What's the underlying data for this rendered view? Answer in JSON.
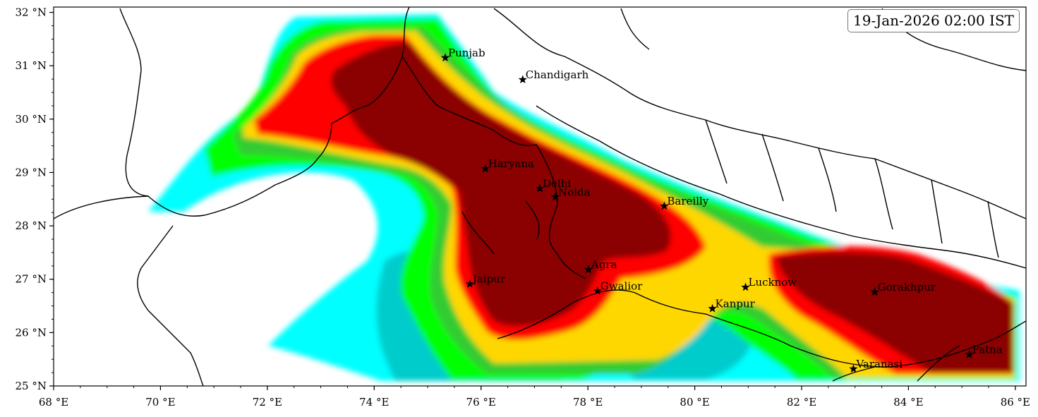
{
  "timestamp": "19-Jan-2026 02:00 IST",
  "map": {
    "lon_range": [
      68,
      86.2
    ],
    "lat_range": [
      25,
      32.1
    ],
    "x_ticks": [
      {
        "lon": 68,
        "label": "68 °E"
      },
      {
        "lon": 70,
        "label": "70 °E"
      },
      {
        "lon": 72,
        "label": "72 °E"
      },
      {
        "lon": 74,
        "label": "74 °E"
      },
      {
        "lon": 76,
        "label": "76 °E"
      },
      {
        "lon": 78,
        "label": "78 °E"
      },
      {
        "lon": 80,
        "label": "80 °E"
      },
      {
        "lon": 82,
        "label": "82 °E"
      },
      {
        "lon": 84,
        "label": "84 °E"
      },
      {
        "lon": 86,
        "label": "86 °E"
      }
    ],
    "y_ticks": [
      {
        "lat": 25,
        "label": "25 °N"
      },
      {
        "lat": 26,
        "label": "26 °N"
      },
      {
        "lat": 27,
        "label": "27 °N"
      },
      {
        "lat": 28,
        "label": "28 °N"
      },
      {
        "lat": 29,
        "label": "29 °N"
      },
      {
        "lat": 30,
        "label": "30 °N"
      },
      {
        "lat": 31,
        "label": "31 °N"
      },
      {
        "lat": 32,
        "label": "32 °N"
      }
    ],
    "colors": {
      "level_1": "#00ffff",
      "level_2": "#00cccc",
      "level_3": "#00ff00",
      "level_4": "#33cc33",
      "level_5": "#ffd700",
      "level_6": "#ff0000",
      "level_7": "#8b0000",
      "border": "#000000"
    },
    "cities": [
      {
        "name": "Punjab",
        "lon": 75.33,
        "lat": 31.15
      },
      {
        "name": "Chandigarh",
        "lon": 76.78,
        "lat": 30.74
      },
      {
        "name": "Haryana",
        "lon": 76.08,
        "lat": 29.07
      },
      {
        "name": "Delhi",
        "lon": 77.1,
        "lat": 28.7
      },
      {
        "name": "Noida",
        "lon": 77.39,
        "lat": 28.54
      },
      {
        "name": "Bareilly",
        "lon": 79.43,
        "lat": 28.37
      },
      {
        "name": "Agra",
        "lon": 78.01,
        "lat": 27.18
      },
      {
        "name": "Jaipur",
        "lon": 75.79,
        "lat": 26.91
      },
      {
        "name": "Gwalior",
        "lon": 78.18,
        "lat": 26.78
      },
      {
        "name": "Lucknow",
        "lon": 80.95,
        "lat": 26.85
      },
      {
        "name": "Kanpur",
        "lon": 80.33,
        "lat": 26.45
      },
      {
        "name": "Gorakhpur",
        "lon": 83.37,
        "lat": 26.76
      },
      {
        "name": "Patna",
        "lon": 85.14,
        "lat": 25.59
      },
      {
        "name": "Varanasi",
        "lon": 82.97,
        "lat": 25.32
      }
    ]
  }
}
